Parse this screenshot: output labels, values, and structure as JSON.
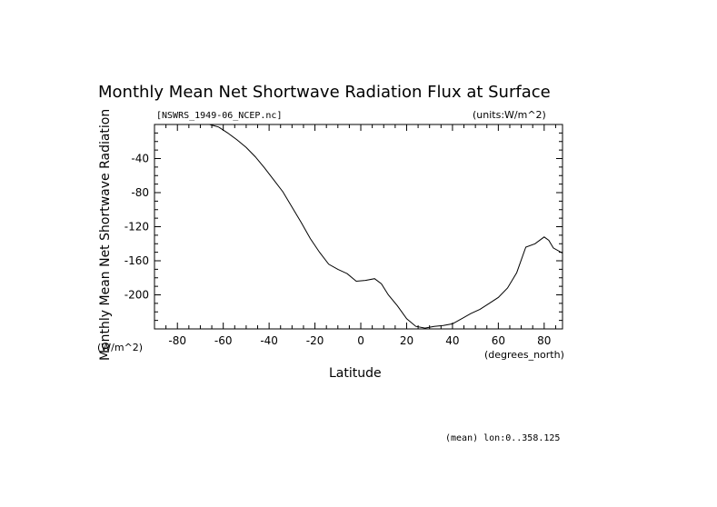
{
  "chart_data": {
    "type": "line",
    "title": "Monthly Mean Net Shortwave Radiation Flux at Surface",
    "file_label": "[NSWRS_1949-06_NCEP.nc]",
    "units_label": "(units:W/m^2)",
    "ylabel": "Monthly Mean Net Shortwave Radiation",
    "y_units": "(W/m^2)",
    "xlabel": "Latitude",
    "x_units": "(degrees_north)",
    "footer": "(mean) lon:0..358.125",
    "xlim": [
      -90,
      88
    ],
    "ylim": [
      -240,
      0
    ],
    "x_ticks": [
      -80,
      -60,
      -40,
      -20,
      0,
      20,
      40,
      60,
      80
    ],
    "y_ticks": [
      -40,
      -80,
      -120,
      -160,
      -200
    ],
    "x_tick_labels": [
      "-80",
      "-60",
      "-40",
      "-20",
      "0",
      "20",
      "40",
      "60",
      "80"
    ],
    "y_tick_labels": [
      "-40",
      "-80",
      "-120",
      "-160",
      "-200"
    ],
    "grid": false,
    "series": [
      {
        "x": [
          -66,
          -62,
          -58,
          -54,
          -50,
          -46,
          -42,
          -38,
          -34,
          -30,
          -26,
          -22,
          -18,
          -14,
          -10,
          -6,
          -2,
          2,
          6,
          9,
          12,
          16,
          20,
          24,
          28,
          32,
          36,
          40,
          44,
          48,
          52,
          56,
          60,
          64,
          68,
          72,
          76,
          80,
          82,
          84,
          88
        ],
        "values": [
          0,
          -3,
          -10,
          -18,
          -27,
          -38,
          -51,
          -65,
          -79,
          -97,
          -115,
          -134,
          -150,
          -164,
          -170,
          -175,
          -184,
          -183,
          -181,
          -187,
          -200,
          -213,
          -228,
          -237,
          -239,
          -237,
          -236,
          -234,
          -228,
          -222,
          -217,
          -210,
          -203,
          -192,
          -174,
          -144,
          -140,
          -132,
          -136,
          -145,
          -151
        ]
      }
    ]
  }
}
